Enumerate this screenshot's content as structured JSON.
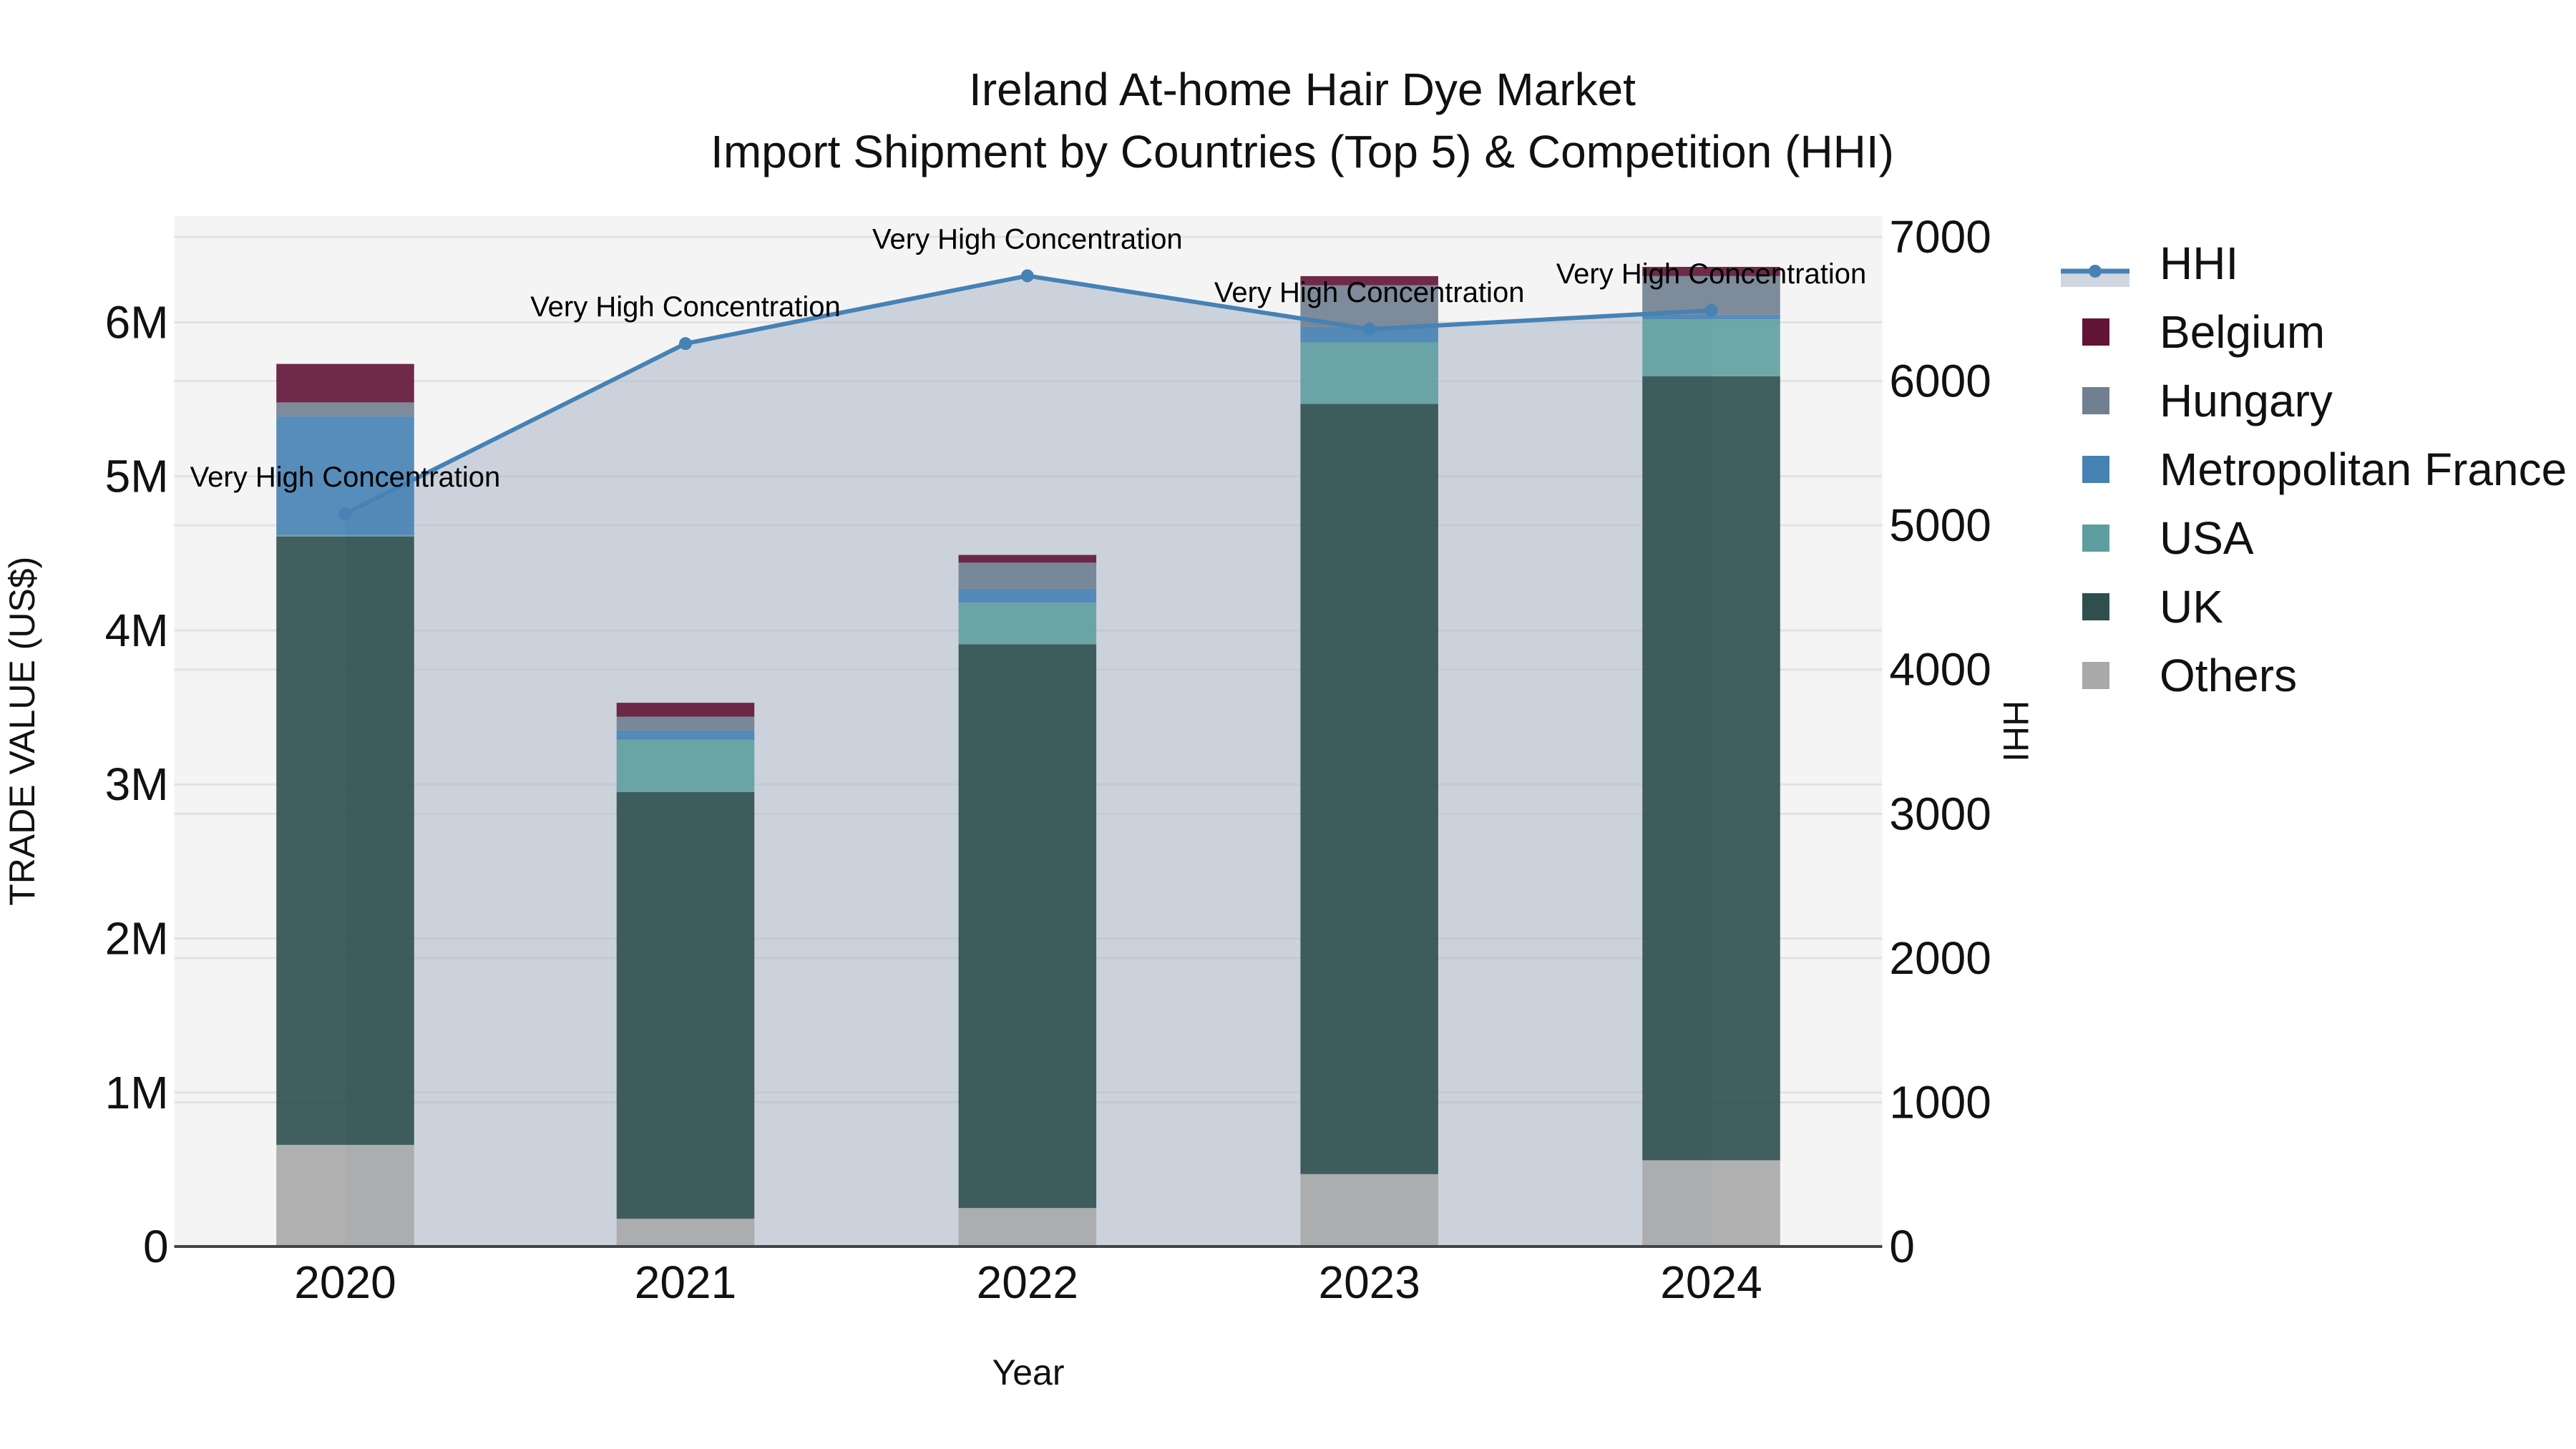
{
  "title": {
    "line1": "Ireland At-home Hair Dye Market",
    "line2": "Import Shipment by Countries (Top 5) & Competition (HHI)"
  },
  "axes": {
    "x_label": "Year",
    "y_left_label": "TRADE VALUE (US$)",
    "y_right_label": "HHI",
    "y_left_ticks": [
      "0",
      "1M",
      "2M",
      "3M",
      "4M",
      "5M",
      "6M"
    ],
    "y_right_ticks": [
      "0",
      "1000",
      "2000",
      "3000",
      "4000",
      "5000",
      "6000",
      "7000"
    ]
  },
  "legend": [
    {
      "label": "HHI",
      "color": "#4682b4",
      "type": "line"
    },
    {
      "label": "Belgium",
      "color": "#621436",
      "type": "bar"
    },
    {
      "label": "Hungary",
      "color": "#708090",
      "type": "bar"
    },
    {
      "label": "Metropolitan France",
      "color": "#4682b4",
      "type": "bar"
    },
    {
      "label": "USA",
      "color": "#5f9ea0",
      "type": "bar"
    },
    {
      "label": "UK",
      "color": "#2f4f4f",
      "type": "bar"
    },
    {
      "label": "Others",
      "color": "#a9a9a9",
      "type": "bar"
    }
  ],
  "chart_data": {
    "type": "bar",
    "title": "Ireland At-home Hair Dye Market - Import Shipment by Countries (Top 5) & Competition (HHI)",
    "xlabel": "Year",
    "ylabel": "TRADE VALUE (US$)",
    "y2label": "HHI",
    "ylim": [
      0,
      6600000
    ],
    "y2lim": [
      0,
      7000
    ],
    "stacked": true,
    "categories": [
      "2020",
      "2021",
      "2022",
      "2023",
      "2024"
    ],
    "series": [
      {
        "name": "Others",
        "color": "#a9a9a9",
        "values": [
          660000,
          180000,
          250000,
          470000,
          560000
        ]
      },
      {
        "name": "UK",
        "color": "#2f4f4f",
        "values": [
          3950000,
          2770000,
          3660000,
          5000000,
          5090000
        ]
      },
      {
        "name": "USA",
        "color": "#5f9ea0",
        "values": [
          10000,
          340000,
          270000,
          400000,
          370000
        ]
      },
      {
        "name": "Metropolitan France",
        "color": "#4682b4",
        "values": [
          770000,
          60000,
          90000,
          100000,
          30000
        ]
      },
      {
        "name": "Hungary",
        "color": "#708090",
        "values": [
          90000,
          90000,
          170000,
          270000,
          250000
        ]
      },
      {
        "name": "Belgium",
        "color": "#621436",
        "values": [
          250000,
          90000,
          50000,
          60000,
          60000
        ]
      }
    ],
    "line_series": {
      "name": "HHI",
      "axis": "right",
      "color": "#4682b4",
      "values": [
        5080,
        6260,
        6730,
        6360,
        6490
      ]
    },
    "annotations": [
      {
        "x": "2020",
        "text": "Very High Concentration"
      },
      {
        "x": "2021",
        "text": "Very High Concentration"
      },
      {
        "x": "2022",
        "text": "Very High Concentration"
      },
      {
        "x": "2023",
        "text": "Very High Concentration"
      },
      {
        "x": "2024",
        "text": "Very High Concentration"
      }
    ],
    "grid": true,
    "legend_position": "right"
  }
}
